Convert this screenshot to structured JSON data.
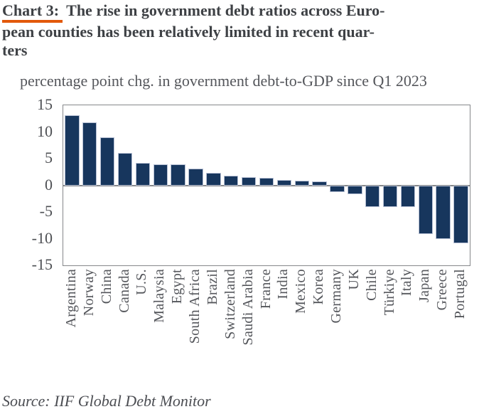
{
  "header": {
    "chart_label": "Chart 3:",
    "title_line1_rest": " The rise in government debt ratios across Euro-",
    "title_line2": "pean counties has been relatively limited in recent quar-",
    "title_line3": "ters"
  },
  "subtitle": "percentage point chg. in government debt-to-GDP since Q1 2023",
  "source": "Source: IIF Global Debt Monitor",
  "colors": {
    "bar": "#17365d",
    "bar_edge": "#b7c0d4",
    "accent_underline": "#e2590b",
    "title_text": "#3e4145",
    "axis_text": "#54565b",
    "plot_border": "#85878a"
  },
  "chart_data": {
    "type": "bar",
    "title": "Chart 3: The rise in government debt ratios across European counties has been relatively limited in recent quarters",
    "subtitle": "percentage point chg. in government debt-to-GDP since Q1 2023",
    "categories": [
      "Argentina",
      "Norway",
      "China",
      "Canada",
      "U.S.",
      "Malaysia",
      "Egypt",
      "South Africa",
      "Brazil",
      "Switzerland",
      "Saudi Arabia",
      "France",
      "India",
      "Mexico",
      "Korea",
      "Germany",
      "UK",
      "Chile",
      "Türkiye",
      "Italy",
      "Japan",
      "Greece",
      "Portugal"
    ],
    "values": [
      13.2,
      11.8,
      9.0,
      6.1,
      4.2,
      4.0,
      3.9,
      3.1,
      2.4,
      1.8,
      1.5,
      1.4,
      1.0,
      0.9,
      0.8,
      -1.3,
      -1.7,
      -4.0,
      -4.1,
      -4.1,
      -9.1,
      -10.1,
      -10.8
    ],
    "ylim": [
      -15,
      15
    ],
    "yticks": [
      15,
      10,
      5,
      0,
      -5,
      -10,
      -15
    ],
    "grid": false,
    "legend": false,
    "source": "Source: IIF Global Debt Monitor"
  }
}
